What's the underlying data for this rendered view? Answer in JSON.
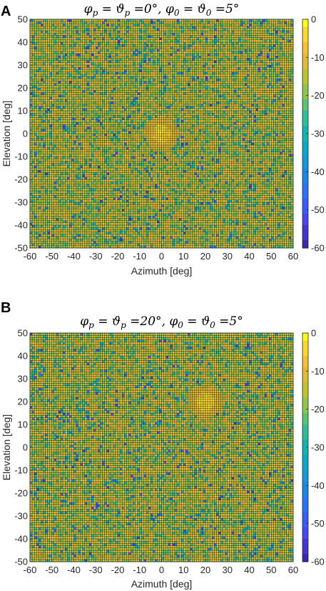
{
  "chart_data": [
    {
      "panel_label": "A",
      "type": "heatmap",
      "title": "φp =ϑp =0°, φ0 =ϑ0 =5°",
      "title_parts": [
        "φ",
        "p",
        " = ϑ",
        "p",
        " =0°, φ",
        "0",
        " = ϑ",
        "0",
        " =5°"
      ],
      "xlabel": "Azimuth [deg]",
      "ylabel": "Elevation [deg]",
      "xlim": [
        -60,
        60
      ],
      "ylim": [
        -50,
        50
      ],
      "xticks": [
        -60,
        -50,
        -40,
        -30,
        -20,
        -10,
        0,
        10,
        20,
        30,
        40,
        50,
        60
      ],
      "yticks": [
        -50,
        -40,
        -30,
        -20,
        -10,
        0,
        10,
        20,
        30,
        40,
        50
      ],
      "colorbar": {
        "range": [
          -60,
          0
        ],
        "ticks": [
          0,
          -10,
          -20,
          -30,
          -40,
          -50,
          -60
        ]
      },
      "beam_peak": {
        "azimuth": 0,
        "elevation": 0,
        "value": 0
      },
      "beam_width_deg": 5,
      "grid_cell_deg": 1
    },
    {
      "panel_label": "B",
      "type": "heatmap",
      "title": "φp =ϑp =20°, φ0 =ϑ0 =5°",
      "title_parts": [
        "φ",
        "p",
        " = ϑ",
        "p",
        " =20°, φ",
        "0",
        " = ϑ",
        "0",
        " =5°"
      ],
      "xlabel": "Azimuth [deg]",
      "ylabel": "Elevation [deg]",
      "xlim": [
        -60,
        60
      ],
      "ylim": [
        -50,
        50
      ],
      "xticks": [
        -60,
        -50,
        -40,
        -30,
        -20,
        -10,
        0,
        10,
        20,
        30,
        40,
        50,
        60
      ],
      "yticks": [
        -50,
        -40,
        -30,
        -20,
        -10,
        0,
        10,
        20,
        30,
        40,
        50
      ],
      "colorbar": {
        "range": [
          -60,
          0
        ],
        "ticks": [
          0,
          -10,
          -20,
          -30,
          -40,
          -50,
          -60
        ]
      },
      "beam_peak": {
        "azimuth": 20,
        "elevation": 20,
        "value": 0
      },
      "beam_width_deg": 5,
      "grid_cell_deg": 1
    }
  ],
  "colormap": [
    "#3e26a8",
    "#4435d0",
    "#4647f2",
    "#3b5cfd",
    "#2a72f5",
    "#1c86e5",
    "#1498d6",
    "#0aa8c6",
    "#10b5b0",
    "#2ebe95",
    "#5ac471",
    "#8ec54a",
    "#bdc232",
    "#e1bb34",
    "#f7be3a",
    "#fad82c",
    "#f9fb15"
  ]
}
